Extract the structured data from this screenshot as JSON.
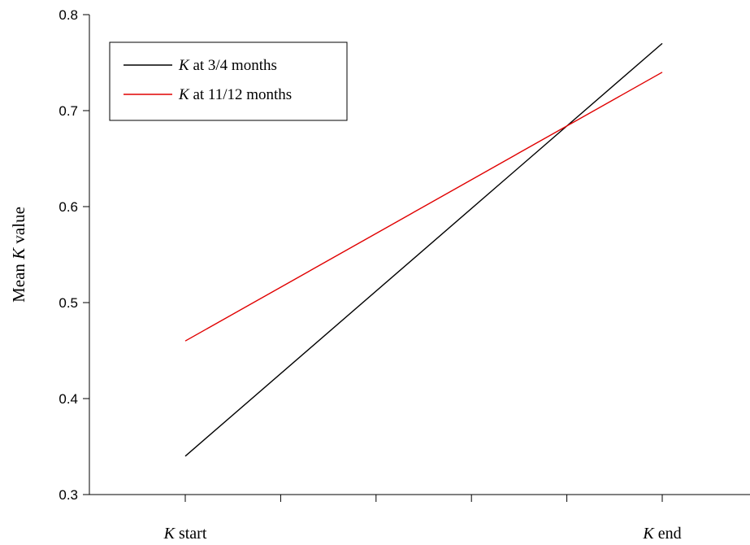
{
  "chart_data": {
    "type": "line",
    "categories": [
      {
        "label_italic": "K",
        "label_rest": " start"
      },
      {
        "label_italic": "K",
        "label_rest": " end"
      }
    ],
    "series": [
      {
        "name_italic": "K",
        "name_rest": " at 3/4 months",
        "color": "#000000",
        "values": [
          0.34,
          0.77
        ]
      },
      {
        "name_italic": "K",
        "name_rest": " at 11/12 months",
        "color": "#e00000",
        "values": [
          0.46,
          0.74
        ]
      }
    ],
    "ylabel_prefix": "Mean ",
    "ylabel_italic": "K",
    "ylabel_suffix": " value",
    "ylim": [
      0.3,
      0.8
    ],
    "yticks": [
      "0.3",
      "0.4",
      "0.5",
      "0.6",
      "0.7",
      "0.8"
    ],
    "grid": false,
    "legend_position": "top-left"
  }
}
